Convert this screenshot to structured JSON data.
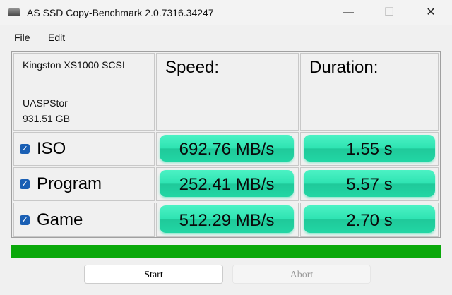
{
  "window": {
    "title": "AS SSD Copy-Benchmark 2.0.7316.34247",
    "minimize": "—",
    "maximize": "☐",
    "close": "✕"
  },
  "menu": [
    "File",
    "Edit"
  ],
  "drive": {
    "model": "Kingston XS1000 SCSI",
    "driver": "UASPStor",
    "size": "931.51 GB"
  },
  "headers": {
    "speed": "Speed:",
    "duration": "Duration:"
  },
  "rows": [
    {
      "label": "ISO",
      "checked": true,
      "speed": "692.76 MB/s",
      "duration": "1.55 s"
    },
    {
      "label": "Program",
      "checked": true,
      "speed": "252.41 MB/s",
      "duration": "5.57 s"
    },
    {
      "label": "Game",
      "checked": true,
      "speed": "512.29 MB/s",
      "duration": "2.70 s"
    }
  ],
  "progress": {
    "percent": 100,
    "color": "#0aa80a"
  },
  "buttons": {
    "start": "Start",
    "abort": "Abort"
  },
  "colors": {
    "result_badge": "#2ee3b2"
  }
}
